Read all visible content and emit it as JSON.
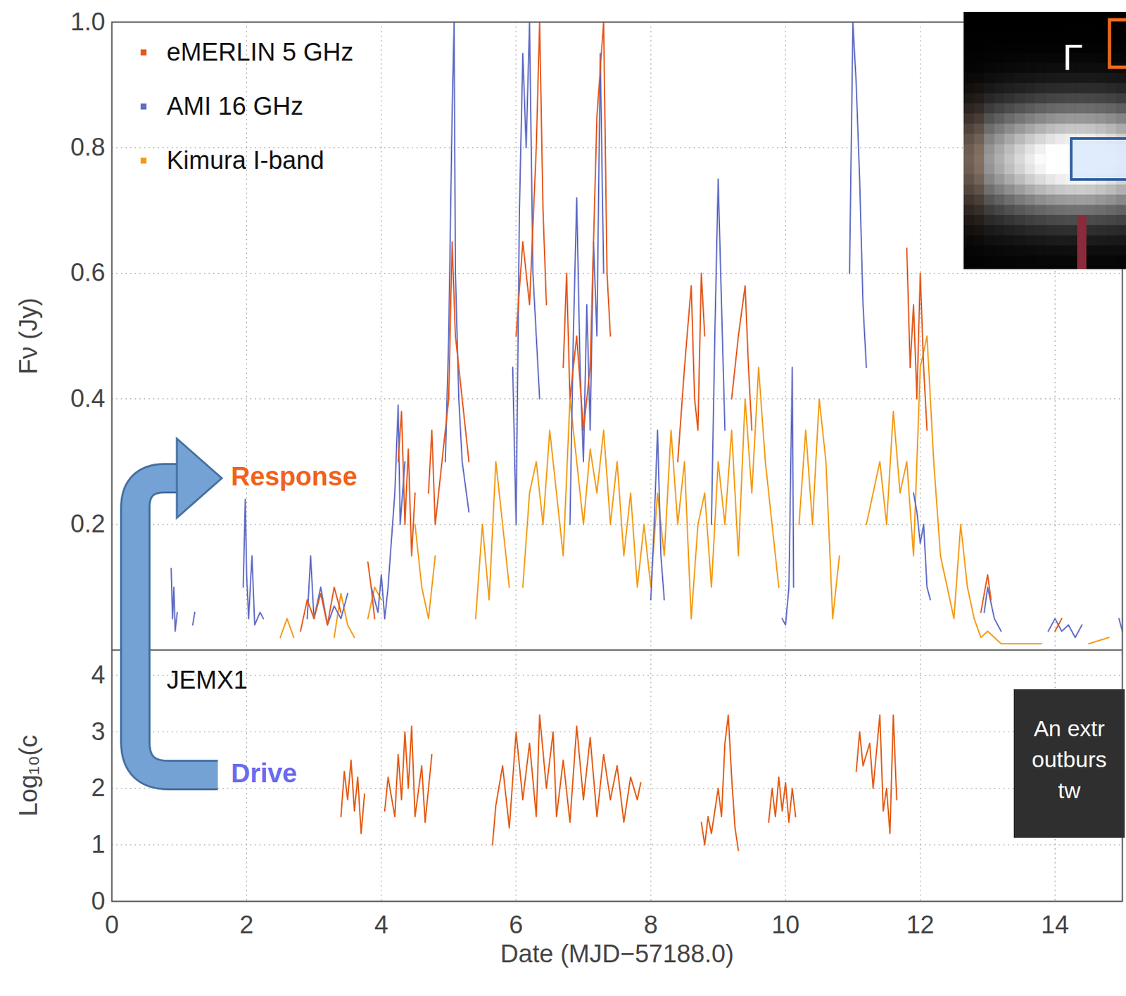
{
  "chart_data": [
    {
      "type": "line",
      "y_label": "Fν (Jy)",
      "xlim": [
        0,
        15
      ],
      "xticks": [
        0,
        2,
        4,
        6,
        8,
        10,
        12,
        14
      ],
      "ylim": [
        0,
        1
      ],
      "yticks": [
        0.2,
        0.4,
        0.6,
        0.8,
        {
          "value": 1,
          "label": "1.0"
        }
      ],
      "grid": true,
      "legend": "top-left",
      "tick_labels": "y",
      "series": [
        {
          "name": "eMERLIN 5 GHz",
          "color": "#e4581b",
          "x": [
            2.8,
            2.9,
            3.0,
            3.1,
            3.2,
            3.3,
            3.4,
            null,
            3.8,
            3.85,
            3.9,
            null,
            4.25,
            4.3,
            4.35,
            4.4,
            4.45,
            4.5,
            null,
            4.7,
            4.75,
            4.8,
            4.9,
            5.0,
            5.05,
            5.1,
            5.2,
            5.3,
            null,
            6.0,
            6.1,
            6.2,
            6.3,
            6.35,
            6.4,
            6.45,
            null,
            6.7,
            6.75,
            6.8,
            6.9,
            7.0,
            7.1,
            7.2,
            7.3,
            7.35,
            7.4,
            null,
            8.4,
            8.5,
            8.6,
            8.65,
            8.7,
            8.75,
            8.8,
            null,
            9.2,
            9.3,
            9.4,
            9.45,
            9.5,
            null,
            11.8,
            11.85,
            11.9,
            11.95,
            12.0,
            12.05,
            12.1,
            null,
            12.9,
            13.0,
            13.05,
            null,
            14.0,
            14.1
          ],
          "values": [
            0.03,
            0.08,
            0.05,
            0.09,
            0.04,
            0.1,
            0.06,
            null,
            0.14,
            0.1,
            0.05,
            null,
            0.3,
            0.38,
            0.2,
            0.32,
            0.15,
            0.25,
            null,
            0.25,
            0.35,
            0.2,
            0.3,
            0.4,
            0.65,
            0.5,
            0.4,
            0.3,
            null,
            0.5,
            0.65,
            0.55,
            0.8,
            1.0,
            0.7,
            0.55,
            null,
            0.45,
            0.6,
            0.4,
            0.5,
            0.35,
            0.45,
            0.85,
            1.0,
            0.6,
            0.5,
            null,
            0.3,
            0.45,
            0.58,
            0.4,
            0.35,
            0.6,
            0.5,
            null,
            0.4,
            0.5,
            0.58,
            0.45,
            0.35,
            null,
            0.64,
            0.45,
            0.55,
            0.4,
            0.6,
            0.45,
            0.35,
            null,
            0.06,
            0.12,
            0.08,
            null,
            0.03,
            0.05
          ]
        },
        {
          "name": "AMI 16 GHz",
          "color": "#5f6cc4",
          "x": [
            0.88,
            0.9,
            0.92,
            0.94,
            0.97,
            null,
            1.2,
            1.23,
            null,
            1.95,
            1.98,
            2.0,
            2.03,
            2.08,
            2.12,
            2.2,
            2.25,
            null,
            2.9,
            2.95,
            3.0,
            3.1,
            3.2,
            3.3,
            3.4,
            3.5,
            null,
            3.85,
            3.95,
            4.0,
            4.05,
            4.1,
            4.2,
            4.25,
            4.28,
            4.35,
            null,
            4.95,
            5.0,
            5.05,
            5.08,
            5.1,
            5.15,
            5.2,
            5.3,
            null,
            5.95,
            6.0,
            6.05,
            6.1,
            6.15,
            6.2,
            6.25,
            6.3,
            6.35,
            null,
            6.8,
            6.85,
            6.9,
            6.95,
            7.0,
            7.05,
            7.1,
            7.15,
            7.2,
            7.25,
            7.3,
            null,
            8.0,
            8.05,
            8.1,
            8.15,
            8.2,
            null,
            8.9,
            8.95,
            9.0,
            9.05,
            9.1,
            null,
            9.95,
            10.0,
            10.05,
            10.1,
            10.12,
            null,
            10.95,
            11.0,
            11.05,
            11.1,
            11.15,
            11.2,
            null,
            11.9,
            11.95,
            12.0,
            12.05,
            12.1,
            12.15,
            null,
            12.95,
            13.0,
            13.1,
            13.2,
            null,
            13.9,
            14.0,
            14.1,
            14.2,
            14.3,
            14.4,
            null,
            14.95,
            15.0
          ],
          "values": [
            0.13,
            0.05,
            0.1,
            0.03,
            0.06,
            null,
            0.04,
            0.06,
            null,
            0.1,
            0.24,
            0.12,
            0.05,
            0.15,
            0.04,
            0.06,
            0.05,
            null,
            0.05,
            0.15,
            0.05,
            0.1,
            0.04,
            0.07,
            0.05,
            0.09,
            null,
            0.1,
            0.06,
            0.12,
            0.05,
            0.1,
            0.25,
            0.39,
            0.2,
            0.3,
            null,
            0.3,
            0.5,
            0.85,
            1.0,
            0.6,
            0.4,
            0.3,
            0.22,
            null,
            0.45,
            0.2,
            0.7,
            0.95,
            0.8,
            1.0,
            0.6,
            0.5,
            0.4,
            null,
            0.2,
            0.5,
            0.72,
            0.45,
            0.3,
            0.55,
            0.35,
            0.65,
            0.5,
            0.95,
            0.6,
            null,
            0.08,
            0.2,
            0.35,
            0.15,
            0.08,
            null,
            0.2,
            0.5,
            0.75,
            0.55,
            0.35,
            null,
            0.05,
            0.04,
            0.1,
            0.45,
            0.1,
            null,
            0.6,
            1.0,
            0.9,
            0.75,
            0.55,
            0.45,
            null,
            0.25,
            0.22,
            0.17,
            0.2,
            0.1,
            0.08,
            null,
            0.06,
            0.1,
            0.05,
            0.03,
            null,
            0.03,
            0.05,
            0.03,
            0.04,
            0.02,
            0.04,
            null,
            0.05,
            0.03
          ]
        },
        {
          "name": "Kimura I-band",
          "color": "#f39a12",
          "x": [
            2.5,
            2.6,
            2.7,
            null,
            3.3,
            3.4,
            3.5,
            3.6,
            null,
            3.8,
            3.9,
            4.0,
            null,
            4.5,
            4.6,
            4.7,
            4.8,
            null,
            5.4,
            5.5,
            5.6,
            5.7,
            5.8,
            5.9,
            null,
            6.1,
            6.2,
            6.3,
            6.4,
            6.5,
            6.6,
            6.7,
            6.8,
            6.9,
            7.0,
            7.1,
            7.2,
            7.3,
            7.4,
            7.5,
            7.6,
            7.7,
            7.8,
            7.9,
            8.0,
            8.1,
            8.2,
            8.3,
            8.4,
            8.5,
            8.6,
            8.7,
            8.8,
            8.9,
            9.0,
            9.1,
            9.2,
            9.3,
            9.4,
            9.5,
            9.6,
            9.7,
            9.8,
            9.9,
            null,
            10.2,
            10.3,
            10.4,
            10.5,
            10.6,
            10.7,
            10.8,
            null,
            11.2,
            11.3,
            11.4,
            11.5,
            11.6,
            11.7,
            11.8,
            11.9,
            12.0,
            12.1,
            12.2,
            12.3,
            12.4,
            12.5,
            12.6,
            12.7,
            12.8,
            12.9,
            13.0,
            13.2,
            13.5,
            13.8,
            null,
            14.5,
            14.8
          ],
          "values": [
            0.02,
            0.05,
            0.02,
            null,
            0.02,
            0.09,
            0.04,
            0.02,
            null,
            0.05,
            0.1,
            0.08,
            null,
            0.2,
            0.1,
            0.05,
            0.15,
            null,
            0.05,
            0.2,
            0.08,
            0.3,
            0.2,
            0.1,
            null,
            0.1,
            0.25,
            0.3,
            0.2,
            0.35,
            0.25,
            0.15,
            0.4,
            0.3,
            0.2,
            0.32,
            0.25,
            0.35,
            0.2,
            0.3,
            0.15,
            0.25,
            0.1,
            0.2,
            0.1,
            0.25,
            0.15,
            0.35,
            0.2,
            0.3,
            0.05,
            0.2,
            0.25,
            0.1,
            0.3,
            0.2,
            0.35,
            0.15,
            0.4,
            0.25,
            0.45,
            0.3,
            0.2,
            0.1,
            null,
            0.2,
            0.35,
            0.2,
            0.4,
            0.3,
            0.05,
            0.15,
            null,
            0.2,
            0.25,
            0.3,
            0.2,
            0.38,
            0.25,
            0.3,
            0.15,
            0.45,
            0.5,
            0.3,
            0.15,
            0.1,
            0.05,
            0.2,
            0.1,
            0.05,
            0.02,
            0.03,
            0.01,
            0.01,
            0.01,
            null,
            0.01,
            0.02
          ]
        }
      ]
    },
    {
      "type": "line",
      "x_label": "Date (MJD−57188.0)",
      "y_label": "Log₁₀(c",
      "xlim": [
        0,
        15
      ],
      "xticks": [
        0,
        2,
        4,
        6,
        8,
        10,
        12,
        14
      ],
      "ylim": [
        0,
        4.45
      ],
      "yticks": [
        0,
        1,
        2,
        3,
        4
      ],
      "grid": true,
      "legend": "top-left",
      "series": [
        {
          "name": "JEMX1",
          "color": "#e35a12",
          "x": [
            3.4,
            3.45,
            3.5,
            3.55,
            3.6,
            3.65,
            3.7,
            3.75,
            null,
            4.05,
            4.1,
            4.2,
            4.25,
            4.3,
            4.35,
            4.4,
            4.45,
            4.5,
            4.6,
            4.65,
            4.75,
            null,
            5.65,
            5.7,
            5.8,
            5.9,
            6.0,
            6.1,
            6.2,
            6.3,
            6.35,
            6.45,
            6.55,
            6.6,
            6.7,
            6.8,
            6.9,
            7.0,
            7.1,
            7.2,
            7.3,
            7.4,
            7.5,
            7.6,
            7.7,
            7.8,
            7.85,
            null,
            8.75,
            8.8,
            8.85,
            8.9,
            9.0,
            9.05,
            9.1,
            9.15,
            9.2,
            9.25,
            9.3,
            null,
            9.75,
            9.8,
            9.85,
            9.9,
            9.95,
            10.0,
            10.05,
            10.1,
            10.15,
            null,
            11.05,
            11.1,
            11.15,
            11.25,
            11.3,
            11.4,
            11.45,
            11.5,
            11.55,
            11.6,
            11.65
          ],
          "values": [
            1.5,
            2.3,
            1.8,
            2.5,
            1.6,
            2.2,
            1.2,
            1.9,
            null,
            1.6,
            2.2,
            1.5,
            2.6,
            1.8,
            3.0,
            2.0,
            3.1,
            1.5,
            2.4,
            1.4,
            2.6,
            null,
            1.0,
            1.7,
            2.4,
            1.3,
            3.0,
            1.8,
            2.8,
            1.5,
            3.3,
            2.0,
            3.0,
            1.5,
            2.5,
            1.4,
            3.1,
            1.8,
            2.9,
            1.5,
            2.6,
            1.8,
            2.4,
            1.4,
            2.2,
            1.8,
            2.1,
            null,
            1.4,
            1.0,
            1.5,
            1.2,
            2.0,
            1.5,
            2.8,
            3.3,
            2.2,
            1.3,
            0.9,
            null,
            1.4,
            2.0,
            1.5,
            2.2,
            1.6,
            2.1,
            1.4,
            2.0,
            1.5,
            null,
            2.3,
            3.0,
            2.4,
            2.8,
            2.0,
            3.3,
            1.6,
            2.0,
            1.2,
            3.3,
            1.8
          ]
        }
      ]
    }
  ],
  "annotations": {
    "response": "Response",
    "drive": "Drive",
    "inset": "Γ",
    "note": [
      "An extr",
      "outburs",
      "tw"
    ]
  }
}
